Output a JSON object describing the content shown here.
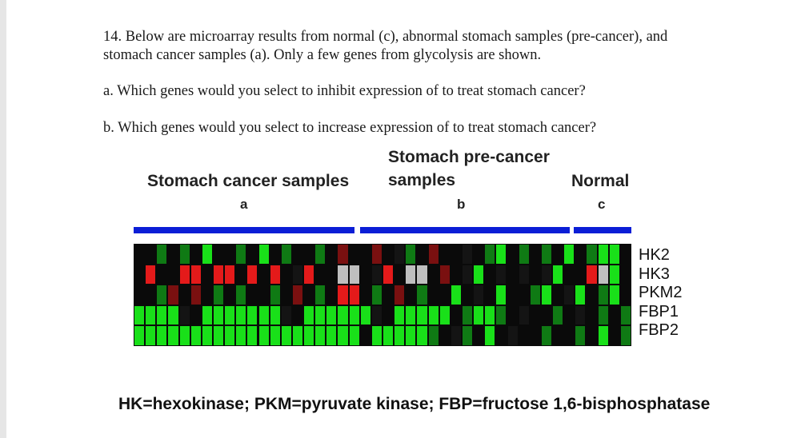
{
  "question": {
    "intro_line1": "14. Below are microarray results from normal (c), abnormal stomach samples (pre-cancer), and",
    "intro_line2": "stomach cancer samples (a).  Only a few genes from glycolysis are shown.",
    "part_a": "a.  Which genes would you select to inhibit expression of to treat stomach cancer?",
    "part_b": "b.  Which genes would you select to increase expression of to treat stomach cancer?"
  },
  "groups": {
    "a": {
      "title_line1": "Stomach cancer samples",
      "title_line2": "",
      "letter": "a"
    },
    "b": {
      "title_line1": "Stomach pre-cancer",
      "title_line2": "samples",
      "letter": "b"
    },
    "c": {
      "title_line1": "Normal",
      "title_line2": "",
      "letter": "c"
    }
  },
  "genes": [
    "HK2",
    "HK3",
    "PKM2",
    "FBP1",
    "FBP2"
  ],
  "legend": "HK=hexokinase; PKM=pyruvate kinase; FBP=fructose 1,6-bisphosphatase",
  "colors": {
    "bar": "#0b1ed6",
    "red": "#e41a1a",
    "green": "#19e019",
    "grey": "#bfbfbf",
    "black": "#0a0a0a"
  },
  "heatmap": {
    "columns": 44,
    "group_sizes": [
      20,
      19,
      5
    ],
    "rows": [
      "2g1g1G2g1G1g2g1r2r1kg1r11k1gG1g1g1G1gGG2g1kG1g21gG1g1G1gG2gGGGGGg",
      "1R2RR1RR1R1R1kR2WW1kR1WW1r1kG1k1k1kG2RWG1R1kG1k2WWWGWWGWWWWG1W",
      "2gr1r1g1g2g1r1g1RR1g1r1g2G1k1G2gG1kG1gG1k2g1k1gG2gGG1k1",
      "GGGGk1GGGGGGGk1GGGGGGk1GGGGG1gGGg1k2g1k1g1gGGg2g1kgGg1g2g1k1g1",
      "GGGGGGGGGGGGGGGGGGGG1GGGGGg1kg1G1k2g2g1G1g1G1g1g2g1gG1gG1g1k"
    ]
  }
}
